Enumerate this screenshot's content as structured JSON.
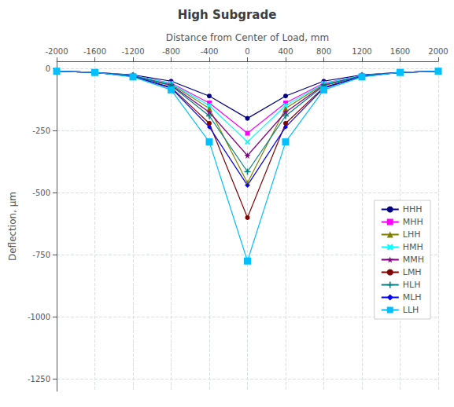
{
  "chart_data": {
    "type": "line",
    "title": "High Subgrade",
    "xlabel": "Distance from Center of Load, mm",
    "ylabel": "Deflection, μm",
    "x": [
      -2000,
      -1600,
      -1200,
      -800,
      -400,
      0,
      400,
      800,
      1200,
      1600,
      2000
    ],
    "xlim": [
      -2000,
      2000
    ],
    "xticks": [
      -2000,
      -1600,
      -1200,
      -800,
      -400,
      0,
      400,
      800,
      1200,
      1600,
      2000
    ],
    "ylim": [
      -1300,
      30
    ],
    "yticks": [
      0,
      -250,
      -500,
      -750,
      -1000,
      -1250
    ],
    "grid": true,
    "legend": "right",
    "series": [
      {
        "name": "HHH",
        "color": "#000080",
        "marker": "circle",
        "line_style": "solid",
        "values": [
          -10,
          -15,
          -25,
          -50,
          -110,
          -200,
          -110,
          -50,
          -25,
          -15,
          -10
        ]
      },
      {
        "name": "MHH",
        "color": "#FF00FF",
        "marker": "square",
        "line_style": "solid",
        "values": [
          -10,
          -15,
          -27,
          -58,
          -138,
          -260,
          -138,
          -58,
          -27,
          -15,
          -10
        ]
      },
      {
        "name": "LHH",
        "color": "#808000",
        "marker": "triangle",
        "line_style": "solid",
        "values": [
          -10,
          -15,
          -28,
          -62,
          -160,
          -460,
          -160,
          -62,
          -28,
          -15,
          -10
        ]
      },
      {
        "name": "HMH",
        "color": "#00FFFF",
        "marker": "x",
        "line_style": "solid",
        "values": [
          -10,
          -15,
          -27,
          -60,
          -148,
          -295,
          -148,
          -60,
          -27,
          -15,
          -10
        ]
      },
      {
        "name": "MMH",
        "color": "#800080",
        "marker": "star",
        "line_style": "solid",
        "values": [
          -10,
          -15,
          -29,
          -66,
          -175,
          -350,
          -175,
          -66,
          -29,
          -15,
          -10
        ]
      },
      {
        "name": "LMH",
        "color": "#800000",
        "marker": "circle",
        "line_style": "solid",
        "values": [
          -10,
          -15,
          -31,
          -75,
          -220,
          -600,
          -220,
          -75,
          -31,
          -15,
          -10
        ]
      },
      {
        "name": "HLH",
        "color": "#008080",
        "marker": "plus",
        "line_style": "solid",
        "values": [
          -10,
          -15,
          -29,
          -68,
          -190,
          -415,
          -190,
          -68,
          -29,
          -15,
          -10
        ]
      },
      {
        "name": "MLH",
        "color": "#0000FF",
        "marker": "diamond",
        "line_style": "solid",
        "values": [
          -10,
          -15,
          -31,
          -78,
          -235,
          -470,
          -235,
          -78,
          -31,
          -15,
          -10
        ]
      },
      {
        "name": "LLH",
        "color": "#00BFFF",
        "marker": "hline",
        "line_style": "solid",
        "values": [
          -10,
          -15,
          -33,
          -85,
          -295,
          -775,
          -295,
          -85,
          -33,
          -15,
          -10
        ]
      }
    ]
  }
}
